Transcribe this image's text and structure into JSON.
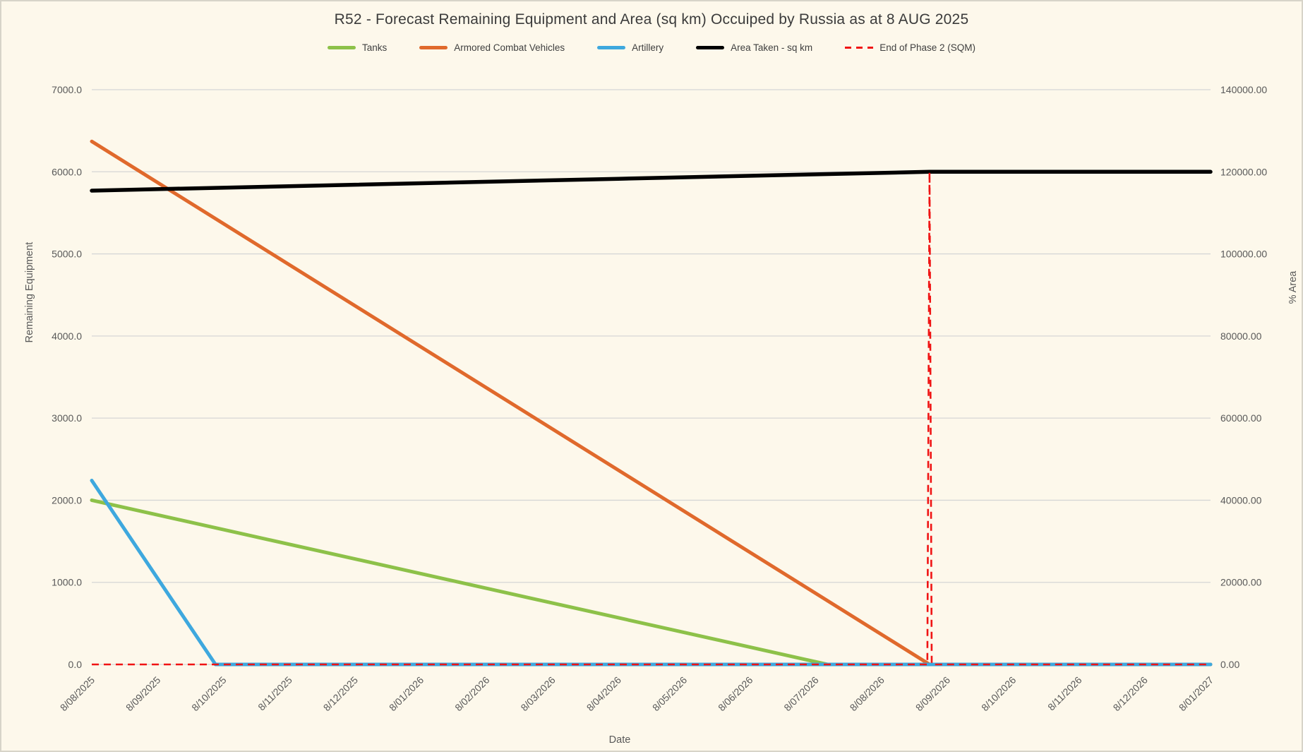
{
  "title": "R52 - Forecast Remaining Equipment and Area (sq km) Occuiped by Russia as at 8 AUG 2025",
  "axes": {
    "left": {
      "title": "Remaining Equipment",
      "ticks": [
        "7000.0",
        "6000.0",
        "5000.0",
        "4000.0",
        "3000.0",
        "2000.0",
        "1000.0",
        "0.0"
      ]
    },
    "right": {
      "title": "% Area",
      "ticks": [
        "140000.00",
        "120000.00",
        "100000.00",
        "80000.00",
        "60000.00",
        "40000.00",
        "20000.00",
        "0.00"
      ]
    },
    "x": {
      "title": "Date"
    }
  },
  "colors": {
    "background": "#FDF8EB",
    "gridline": "#D6D6D6",
    "tick_text": "#595959",
    "title_text": "#3B3B3B"
  },
  "chart_data": {
    "type": "line",
    "x_labels": [
      "8/08/2025",
      "8/09/2025",
      "8/10/2025",
      "8/11/2025",
      "8/12/2025",
      "8/01/2026",
      "8/02/2026",
      "8/03/2026",
      "8/04/2026",
      "8/05/2026",
      "8/06/2026",
      "8/07/2026",
      "8/08/2026",
      "8/09/2026",
      "8/10/2026",
      "8/11/2026",
      "8/12/2026",
      "8/01/2027"
    ],
    "y_left": {
      "label": "Remaining Equipment",
      "range": [
        0,
        7000
      ],
      "tick_step": 1000,
      "grid": true
    },
    "y_right": {
      "label": "% Area",
      "range": [
        0,
        140000
      ],
      "tick_step": 20000,
      "grid": false
    },
    "legend_position": "top",
    "series": [
      {
        "name": "Tanks",
        "axis": "left",
        "color": "#8DC149",
        "style": "solid",
        "width": 5,
        "values": [
          2000,
          1821,
          1642,
          1463,
          1284,
          1106,
          927,
          748,
          569,
          390,
          211,
          32,
          0,
          0,
          0,
          0,
          0,
          0
        ],
        "draw": [
          [
            0,
            2000
          ],
          [
            11.18,
            0
          ],
          [
            17,
            0
          ]
        ]
      },
      {
        "name": "Armored Combat Vehicles",
        "axis": "left",
        "color": "#E0692C",
        "style": "solid",
        "width": 5,
        "values": [
          6370,
          5870,
          5369,
          4869,
          4368,
          3868,
          3367,
          2867,
          2366,
          1866,
          1366,
          865,
          365,
          0,
          0,
          0,
          0,
          0
        ],
        "draw": [
          [
            0,
            6370
          ],
          [
            12.73,
            0
          ],
          [
            17,
            0
          ]
        ]
      },
      {
        "name": "Artillery",
        "axis": "left",
        "color": "#3EA8DE",
        "style": "solid",
        "width": 5,
        "values": [
          2240,
          1049,
          0,
          0,
          0,
          0,
          0,
          0,
          0,
          0,
          0,
          0,
          0,
          0,
          0,
          0,
          0,
          0
        ],
        "draw": [
          [
            0,
            2240
          ],
          [
            1.88,
            0
          ],
          [
            17,
            0
          ]
        ]
      },
      {
        "name": "Area Taken - sq km",
        "axis": "right",
        "color": "#000000",
        "style": "solid",
        "width": 5.5,
        "values": [
          115400,
          115760,
          116120,
          116480,
          116850,
          117210,
          117570,
          117930,
          118290,
          118650,
          119010,
          119380,
          119740,
          120000,
          120000,
          120000,
          120000,
          120000
        ],
        "draw": [
          [
            0,
            115400
          ],
          [
            4,
            116850
          ],
          [
            8,
            118290
          ],
          [
            11,
            119380
          ],
          [
            12.73,
            120000
          ],
          [
            17,
            120000
          ]
        ]
      },
      {
        "name": "End of Phase 2 (SQM)",
        "axis": "right",
        "color": "#F01414",
        "style": "dashed",
        "width": 2.6,
        "values": [
          0,
          0,
          0,
          0,
          0,
          0,
          0,
          0,
          0,
          0,
          0,
          0,
          0,
          120000,
          0,
          0,
          0,
          0
        ],
        "draw": [
          [
            0,
            0
          ],
          [
            12.697,
            0
          ],
          [
            12.73,
            120000
          ],
          [
            12.763,
            0
          ],
          [
            17,
            0
          ]
        ]
      }
    ]
  }
}
